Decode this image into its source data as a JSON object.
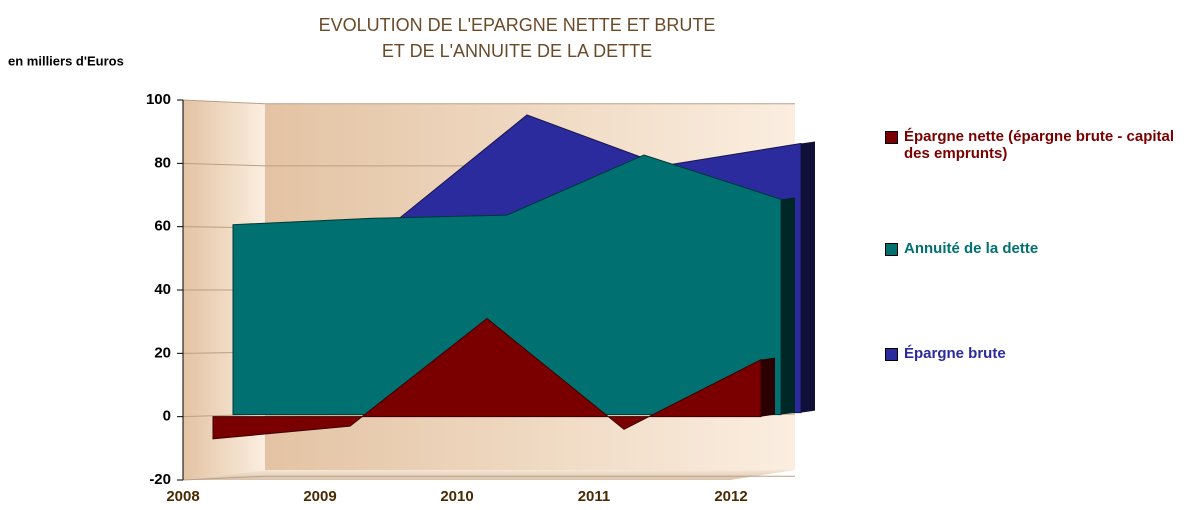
{
  "chart_data": {
    "type": "area3d",
    "title": [
      "EVOLUTION DE L'EPARGNE NETTE ET BRUTE",
      "ET DE L'ANNUITE DE LA DETTE"
    ],
    "y_label": "en milliers d'Euros",
    "categories": [
      "2008",
      "2009",
      "2010",
      "2011",
      "2012"
    ],
    "series": [
      {
        "name": "Épargne nette (épargne brute - capital des emprunts)",
        "color": "#7a0000",
        "values": [
          -7,
          -3,
          31,
          -4,
          18
        ]
      },
      {
        "name": "Annuité de la dette",
        "color": "#007070",
        "values": [
          60,
          62,
          63,
          82,
          68
        ]
      },
      {
        "name": "Épargne brute",
        "color": "#2b2b9e",
        "values": [
          53,
          59,
          94,
          78,
          85
        ]
      }
    ],
    "ylim": [
      -20,
      100
    ],
    "yticks": [
      -20,
      0,
      20,
      40,
      60,
      80,
      100
    ],
    "grid": true
  }
}
